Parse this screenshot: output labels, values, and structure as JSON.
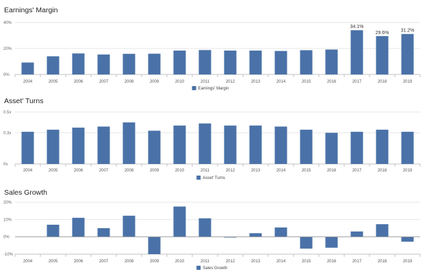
{
  "colors": {
    "bar": "#4a72a8",
    "grid": "#e6e6e6",
    "axis": "#c0c0c0",
    "baseline": "#999999"
  },
  "chart_data": [
    {
      "type": "bar",
      "title": "Earnings' Margin",
      "categories": [
        "2004",
        "2005",
        "2006",
        "2007",
        "2008",
        "2009",
        "2010",
        "2011",
        "2012",
        "2013",
        "2014",
        "2015",
        "2016",
        "2017",
        "2018",
        "2019"
      ],
      "series": [
        {
          "name": "Earnings' Margin",
          "values": [
            9.2,
            14.0,
            16.2,
            15.4,
            15.9,
            16.0,
            18.4,
            18.8,
            18.4,
            18.4,
            18.1,
            18.7,
            19.2,
            34.1,
            29.6,
            31.2
          ],
          "data_labels": [
            "",
            "",
            "",
            "",
            "",
            "",
            "",
            "",
            "",
            "",
            "",
            "",
            "",
            "34.1%",
            "29.6%",
            "31.2%"
          ]
        }
      ],
      "yticks": [
        {
          "value": 0,
          "label": "0%"
        },
        {
          "value": 20,
          "label": "20%"
        },
        {
          "value": 40,
          "label": "40%"
        }
      ],
      "ylim": [
        0,
        40
      ],
      "legend": "bottom-center"
    },
    {
      "type": "bar",
      "title": "Asset' Turns",
      "categories": [
        "2004",
        "2005",
        "2006",
        "2007",
        "2008",
        "2009",
        "2010",
        "2011",
        "2012",
        "2013",
        "2014",
        "2015",
        "2016",
        "2017",
        "2018",
        "2019"
      ],
      "series": [
        {
          "name": "Asset' Turns",
          "values": [
            0.31,
            0.33,
            0.35,
            0.36,
            0.4,
            0.32,
            0.37,
            0.39,
            0.37,
            0.37,
            0.36,
            0.33,
            0.3,
            0.31,
            0.33,
            0.31
          ],
          "data_labels": []
        }
      ],
      "yticks": [
        {
          "value": 0,
          "label": "0x"
        },
        {
          "value": 0.3,
          "label": "0.3x"
        },
        {
          "value": 0.5,
          "label": "0.5x"
        }
      ],
      "ylim": [
        0,
        0.5
      ],
      "legend": "bottom-center"
    },
    {
      "type": "bar",
      "title": "Sales Growth",
      "categories": [
        "2004",
        "2005",
        "2006",
        "2007",
        "2008",
        "2009",
        "2010",
        "2011",
        "2012",
        "2013",
        "2014",
        "2015",
        "2016",
        "2017",
        "2018",
        "2019"
      ],
      "series": [
        {
          "name": "Sales Growth",
          "values": [
            0,
            7.0,
            11.0,
            5.0,
            12.2,
            -10.0,
            17.5,
            10.7,
            -0.4,
            2.1,
            5.4,
            -6.8,
            -6.3,
            3.1,
            7.3,
            -2.8
          ],
          "data_labels": []
        }
      ],
      "yticks": [
        {
          "value": -10,
          "label": "-10%"
        },
        {
          "value": 0,
          "label": "0%"
        },
        {
          "value": 10,
          "label": "10%"
        },
        {
          "value": 20,
          "label": "20%"
        }
      ],
      "ylim": [
        -10,
        20
      ],
      "legend": "bottom-center"
    }
  ]
}
